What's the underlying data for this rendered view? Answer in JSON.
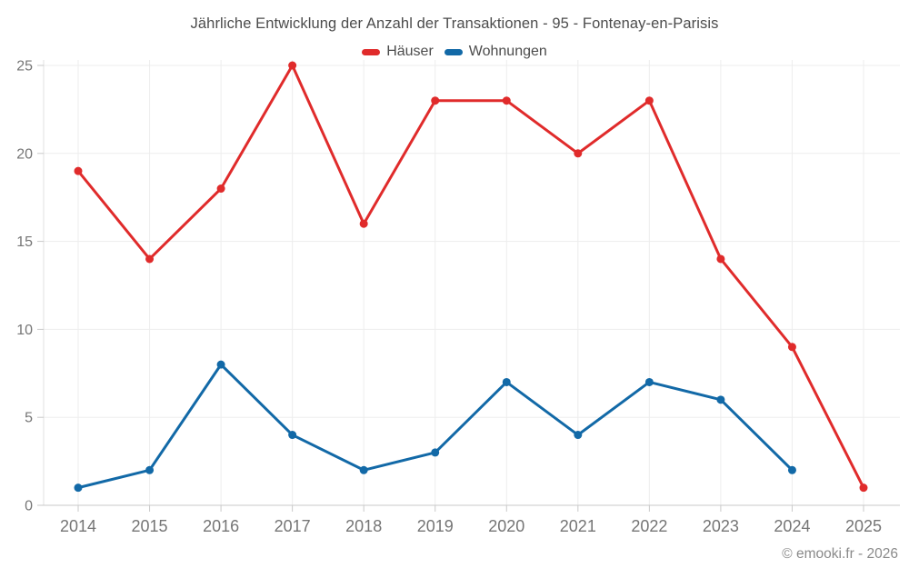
{
  "header": {
    "title": "Jährliche Entwicklung der Anzahl der Transaktionen - 95 - Fontenay-en-Parisis"
  },
  "footer": {
    "copyright": "© emooki.fr - 2026"
  },
  "chart_data": {
    "type": "line",
    "title": "Jährliche Entwicklung der Anzahl der Transaktionen - 95 - Fontenay-en-Parisis",
    "x": [
      2014,
      2015,
      2016,
      2017,
      2018,
      2019,
      2020,
      2021,
      2022,
      2023,
      2024,
      2025
    ],
    "series": [
      {
        "name": "Häuser",
        "slug": "haeuser",
        "color": "#e02b2b",
        "values": [
          19,
          14,
          18,
          25,
          16,
          23,
          23,
          20,
          23,
          14,
          9,
          1
        ]
      },
      {
        "name": "Wohnungen",
        "slug": "wohnungen",
        "color": "#1269a7",
        "values": [
          1,
          2,
          8,
          4,
          2,
          3,
          7,
          4,
          7,
          6,
          2,
          null
        ]
      }
    ],
    "xlabel": "",
    "ylabel": "",
    "ylim": [
      0,
      25
    ],
    "yticks": [
      0,
      5,
      10,
      15,
      20,
      25
    ],
    "grid": true,
    "legend_position": "top",
    "marker": "circle"
  },
  "theme": {
    "background": "#ffffff",
    "title_color": "#4c4c4c",
    "axis_label_color": "#757575",
    "grid_color": "#ededed",
    "y_axis_line_color": "#e0e0e0",
    "x_axis_line_color": "#c9c9c9",
    "tick_color": "#c9c9c9",
    "copyright_color": "#8a8a8a"
  }
}
